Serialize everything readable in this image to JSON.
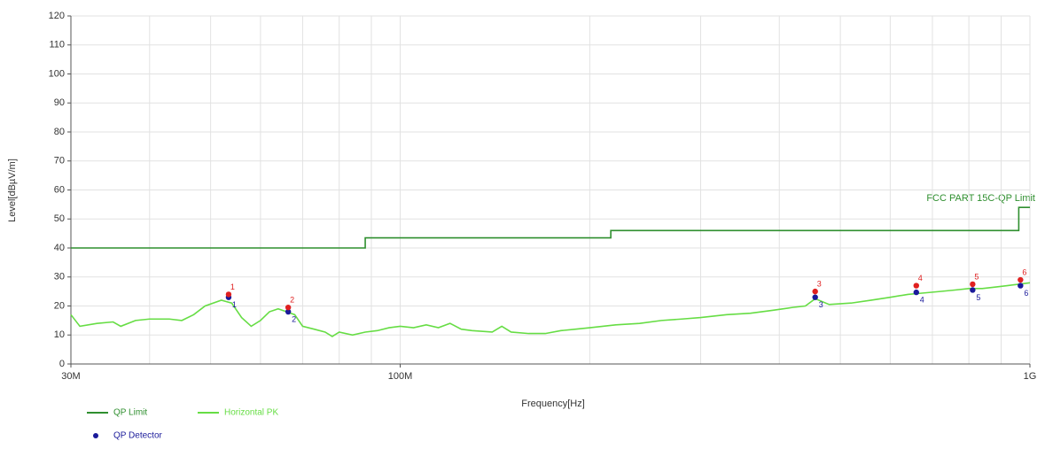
{
  "chart_data": {
    "type": "line",
    "x_label": "Frequency[Hz]",
    "y_label": "Level[dBµV/m]",
    "annotation": "FCC PART 15C-QP Limit",
    "xlog": true,
    "grid": true,
    "xlim": [
      30000000,
      1000000000
    ],
    "ylim": [
      0,
      120
    ],
    "xticks": [
      {
        "value": 30000000,
        "label": "30M"
      },
      {
        "value": 100000000,
        "label": "100M"
      },
      {
        "value": 1000000000,
        "label": "1G"
      }
    ],
    "xgrid_minor": [
      40000000,
      50000000,
      60000000,
      70000000,
      80000000,
      90000000,
      200000000,
      300000000,
      400000000,
      500000000,
      600000000,
      700000000,
      800000000,
      900000000
    ],
    "yticks": [
      0,
      10,
      20,
      30,
      40,
      50,
      60,
      70,
      80,
      90,
      100,
      110,
      120
    ],
    "series": [
      {
        "name": "QP Limit",
        "color": "#2f8f2f",
        "kind": "line",
        "x": [
          30000000,
          88000000,
          88000000,
          216000000,
          216000000,
          960000000,
          960000000,
          1000000000
        ],
        "values": [
          40,
          40,
          43.5,
          43.5,
          46,
          46,
          54,
          54
        ]
      },
      {
        "name": "Horizontal PK",
        "color": "#66dd44",
        "kind": "line",
        "x": [
          30000000,
          31000000,
          33000000,
          35000000,
          36000000,
          38000000,
          40000000,
          43000000,
          45000000,
          47000000,
          49000000,
          52000000,
          54000000,
          56000000,
          58000000,
          60000000,
          62000000,
          64000000,
          66000000,
          68000000,
          70000000,
          73000000,
          76000000,
          78000000,
          80000000,
          84000000,
          88000000,
          92000000,
          96000000,
          100000000,
          105000000,
          110000000,
          115000000,
          120000000,
          125000000,
          130000000,
          140000000,
          145000000,
          150000000,
          160000000,
          170000000,
          180000000,
          190000000,
          200000000,
          220000000,
          240000000,
          260000000,
          280000000,
          300000000,
          330000000,
          360000000,
          390000000,
          420000000,
          440000000,
          456000000,
          480000000,
          520000000,
          560000000,
          600000000,
          640000000,
          680000000,
          720000000,
          760000000,
          800000000,
          840000000,
          880000000,
          920000000,
          960000000,
          1000000000
        ],
        "values": [
          17,
          13,
          14,
          14.5,
          13,
          15,
          15.5,
          15.5,
          15,
          17,
          20,
          22,
          21,
          16,
          13,
          15,
          18,
          19,
          18,
          17,
          13,
          12,
          11,
          9.5,
          11,
          10,
          11,
          11.5,
          12.5,
          13,
          12.5,
          13.5,
          12.5,
          14,
          12,
          11.5,
          11,
          13,
          11,
          10.5,
          10.5,
          11.5,
          12,
          12.5,
          13.5,
          14,
          15,
          15.5,
          16,
          17,
          17.5,
          18.5,
          19.5,
          20,
          22.5,
          20.5,
          21,
          22,
          23,
          24,
          24.5,
          25,
          25.5,
          26,
          26,
          26.5,
          27,
          27.5,
          28
        ]
      },
      {
        "name": "QP Detector",
        "color": "#1a1a9a",
        "kind": "points",
        "x": [
          53400000,
          66400000,
          456000000,
          660000000,
          811000000,
          966000000
        ],
        "values": [
          23,
          18,
          23,
          24.7,
          25.5,
          27
        ],
        "labels": [
          "1",
          "2",
          "3",
          "4",
          "5",
          "6"
        ]
      }
    ],
    "peak_markers": {
      "color": "#e02020",
      "x": [
        53400000,
        66400000,
        456000000,
        660000000,
        811000000,
        966000000
      ],
      "values": [
        24,
        19.5,
        25,
        27,
        27.5,
        29
      ],
      "labels": [
        "1",
        "2",
        "3",
        "4",
        "5",
        "6"
      ]
    }
  }
}
